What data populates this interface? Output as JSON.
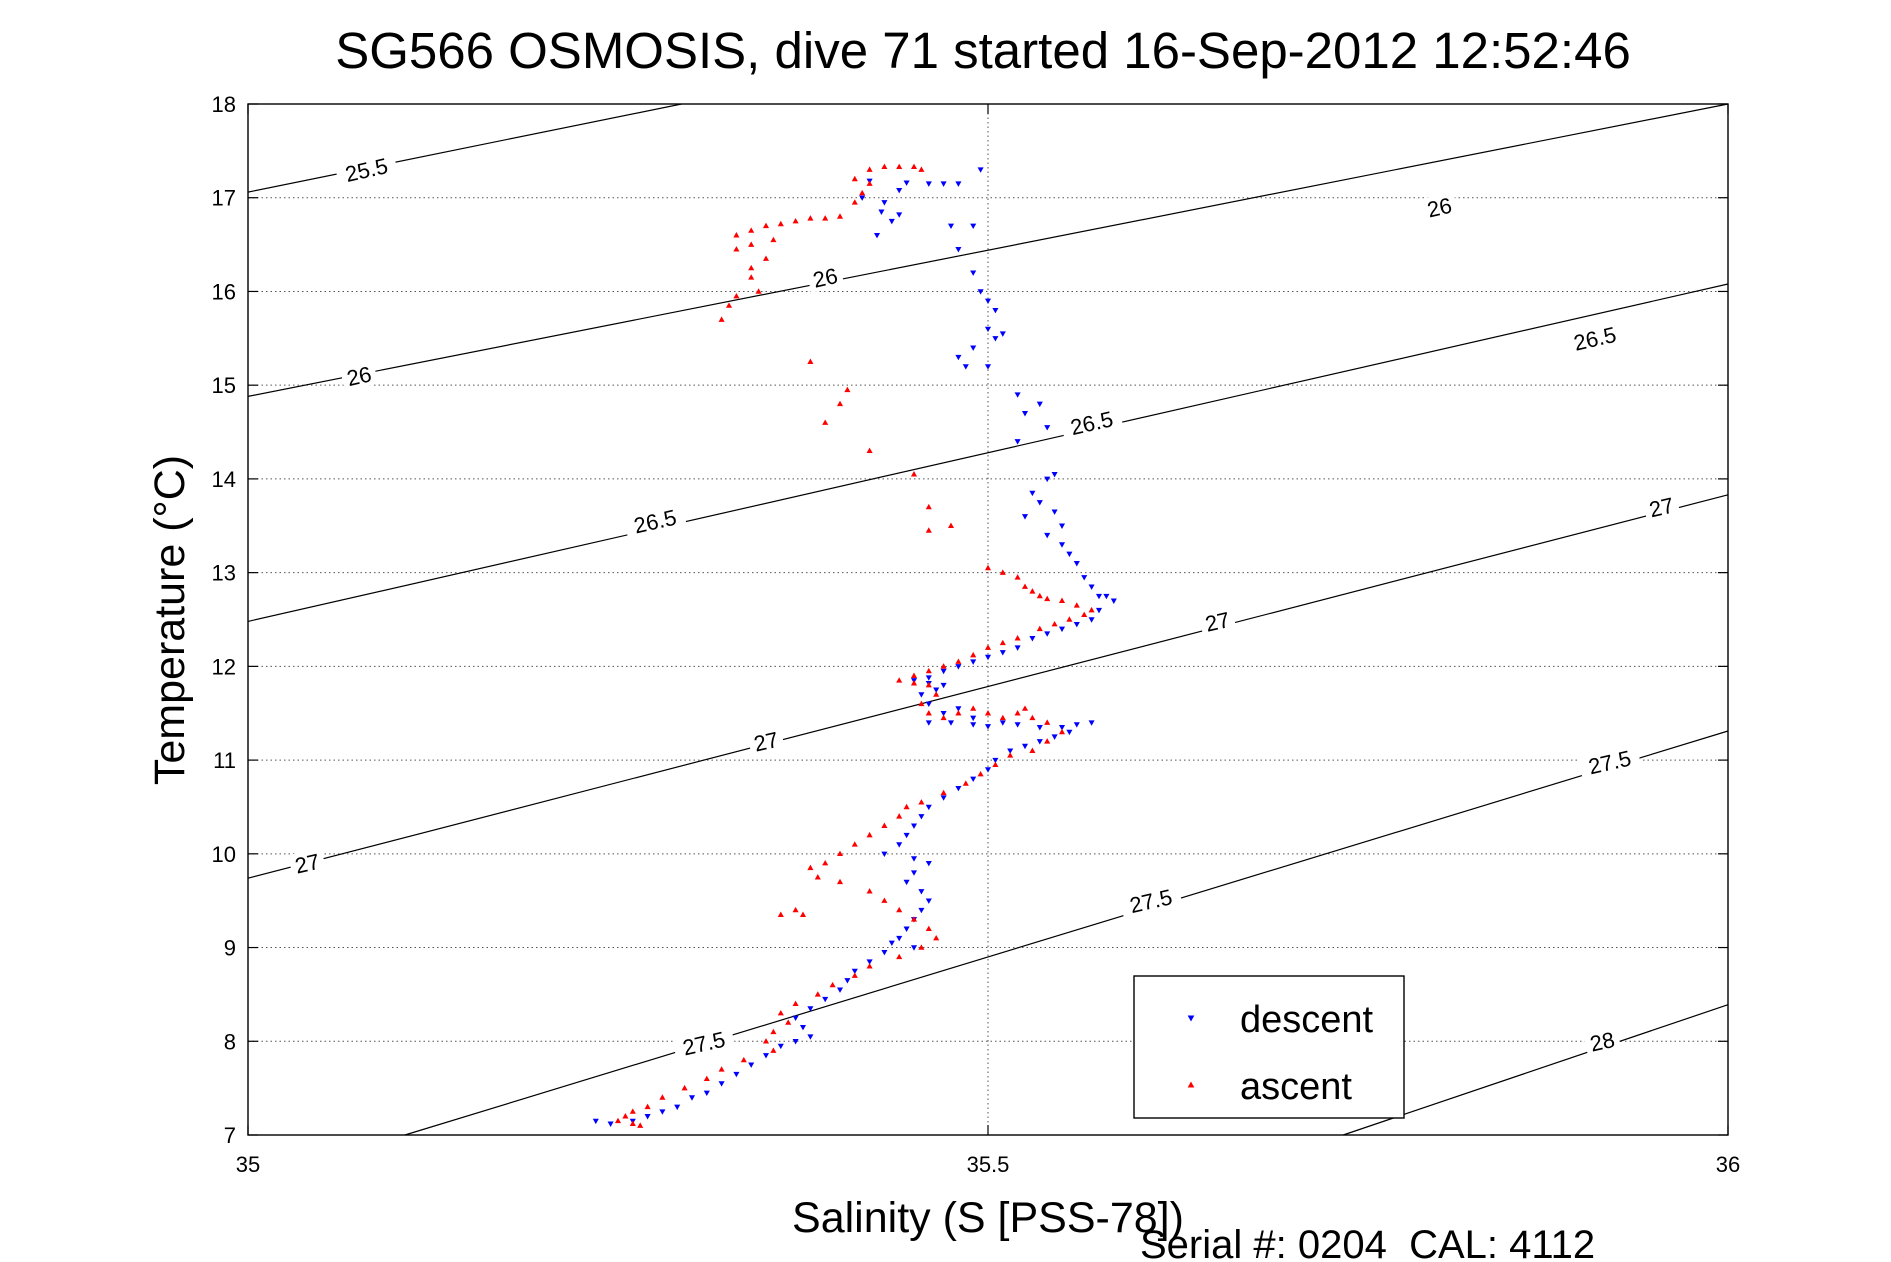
{
  "chart_data": {
    "type": "scatter",
    "title": "SG566 OSMOSIS, dive 71 started 16-Sep-2012 12:52:46",
    "xlabel": "Salinity (S [PSS-78])",
    "ylabel": "Temperature (°C)",
    "footer": "Serial #: 0204  CAL: 4112",
    "xlim": [
      35,
      36
    ],
    "ylim": [
      7,
      18
    ],
    "x_ticks": [
      35,
      35.5,
      36
    ],
    "x_tick_labels": [
      "35",
      "35.5",
      "36"
    ],
    "y_ticks": [
      7,
      8,
      9,
      10,
      11,
      12,
      13,
      14,
      15,
      16,
      17,
      18
    ],
    "y_tick_labels": [
      "7",
      "8",
      "9",
      "10",
      "11",
      "12",
      "13",
      "14",
      "15",
      "16",
      "17",
      "18"
    ],
    "grid": true,
    "legend_position": "bottom-right",
    "contours": [
      {
        "label": "25.5",
        "points": [
          [
            35,
            17.06
          ],
          [
            35.293,
            18.0
          ]
        ]
      },
      {
        "label": "26",
        "points": [
          [
            35,
            14.88
          ],
          [
            36,
            18.0
          ]
        ]
      },
      {
        "label": "26.5",
        "points": [
          [
            35,
            12.48
          ],
          [
            36,
            16.08
          ]
        ]
      },
      {
        "label": "27",
        "points": [
          [
            35,
            9.74
          ],
          [
            36,
            13.83
          ]
        ]
      },
      {
        "label": "27.5",
        "points": [
          [
            35.106,
            7.0
          ],
          [
            36,
            11.31
          ]
        ]
      },
      {
        "label": "28",
        "points": [
          [
            35.74,
            7.0
          ],
          [
            36,
            8.39
          ]
        ]
      }
    ],
    "contour_labels": [
      {
        "text": "25.5",
        "x": 35.08,
        "y": 17.3
      },
      {
        "text": "26",
        "x": 35.39,
        "y": 16.15
      },
      {
        "text": "26",
        "x": 35.075,
        "y": 15.1
      },
      {
        "text": "26",
        "x": 35.805,
        "y": 16.9
      },
      {
        "text": "26.5",
        "x": 35.57,
        "y": 14.6
      },
      {
        "text": "26.5",
        "x": 35.275,
        "y": 13.55
      },
      {
        "text": "26.5",
        "x": 35.91,
        "y": 15.5
      },
      {
        "text": "27",
        "x": 35.35,
        "y": 11.2
      },
      {
        "text": "27",
        "x": 35.04,
        "y": 9.9
      },
      {
        "text": "27",
        "x": 35.655,
        "y": 12.48
      },
      {
        "text": "27",
        "x": 35.955,
        "y": 13.7
      },
      {
        "text": "27.5",
        "x": 35.308,
        "y": 7.98
      },
      {
        "text": "27.5",
        "x": 35.61,
        "y": 9.5
      },
      {
        "text": "27.5",
        "x": 35.92,
        "y": 10.98
      },
      {
        "text": "28",
        "x": 35.915,
        "y": 8.0
      }
    ],
    "series": [
      {
        "name": "descent",
        "color": "#0000ff",
        "marker": "triangle-down",
        "points": [
          [
            35.42,
            17.18
          ],
          [
            35.44,
            17.08
          ],
          [
            35.445,
            17.16
          ],
          [
            35.46,
            17.15
          ],
          [
            35.47,
            17.15
          ],
          [
            35.48,
            17.15
          ],
          [
            35.495,
            17.3
          ],
          [
            35.415,
            17.0
          ],
          [
            35.43,
            16.95
          ],
          [
            35.428,
            16.85
          ],
          [
            35.435,
            16.75
          ],
          [
            35.44,
            16.82
          ],
          [
            35.425,
            16.6
          ],
          [
            35.475,
            16.7
          ],
          [
            35.49,
            16.7
          ],
          [
            35.48,
            16.45
          ],
          [
            35.49,
            16.2
          ],
          [
            35.495,
            16.0
          ],
          [
            35.5,
            15.9
          ],
          [
            35.505,
            15.8
          ],
          [
            35.5,
            15.6
          ],
          [
            35.505,
            15.5
          ],
          [
            35.49,
            15.4
          ],
          [
            35.48,
            15.3
          ],
          [
            35.485,
            15.2
          ],
          [
            35.51,
            15.55
          ],
          [
            35.5,
            15.2
          ],
          [
            35.52,
            14.9
          ],
          [
            35.525,
            14.7
          ],
          [
            35.535,
            14.8
          ],
          [
            35.54,
            14.55
          ],
          [
            35.52,
            14.4
          ],
          [
            35.54,
            14.0
          ],
          [
            35.545,
            14.05
          ],
          [
            35.53,
            13.85
          ],
          [
            35.535,
            13.75
          ],
          [
            35.545,
            13.65
          ],
          [
            35.525,
            13.6
          ],
          [
            35.55,
            13.5
          ],
          [
            35.54,
            13.4
          ],
          [
            35.55,
            13.3
          ],
          [
            35.555,
            13.2
          ],
          [
            35.56,
            13.1
          ],
          [
            35.565,
            12.95
          ],
          [
            35.57,
            12.85
          ],
          [
            35.575,
            12.75
          ],
          [
            35.58,
            12.75
          ],
          [
            35.585,
            12.7
          ],
          [
            35.575,
            12.6
          ],
          [
            35.57,
            12.5
          ],
          [
            35.56,
            12.45
          ],
          [
            35.55,
            12.4
          ],
          [
            35.54,
            12.35
          ],
          [
            35.53,
            12.3
          ],
          [
            35.52,
            12.2
          ],
          [
            35.51,
            12.15
          ],
          [
            35.5,
            12.1
          ],
          [
            35.49,
            12.05
          ],
          [
            35.48,
            12.0
          ],
          [
            35.47,
            11.95
          ],
          [
            35.46,
            11.88
          ],
          [
            35.45,
            11.85
          ],
          [
            35.46,
            11.82
          ],
          [
            35.47,
            11.8
          ],
          [
            35.465,
            11.75
          ],
          [
            35.455,
            11.7
          ],
          [
            35.46,
            11.6
          ],
          [
            35.47,
            11.5
          ],
          [
            35.48,
            11.55
          ],
          [
            35.49,
            11.45
          ],
          [
            35.46,
            11.4
          ],
          [
            35.475,
            11.4
          ],
          [
            35.49,
            11.38
          ],
          [
            35.5,
            11.36
          ],
          [
            35.51,
            11.4
          ],
          [
            35.52,
            11.38
          ],
          [
            35.535,
            11.35
          ],
          [
            35.55,
            11.35
          ],
          [
            35.56,
            11.38
          ],
          [
            35.57,
            11.4
          ],
          [
            35.555,
            11.3
          ],
          [
            35.545,
            11.25
          ],
          [
            35.535,
            11.2
          ],
          [
            35.525,
            11.15
          ],
          [
            35.515,
            11.1
          ],
          [
            35.505,
            11.0
          ],
          [
            35.5,
            10.9
          ],
          [
            35.49,
            10.8
          ],
          [
            35.48,
            10.7
          ],
          [
            35.47,
            10.6
          ],
          [
            35.46,
            10.5
          ],
          [
            35.455,
            10.4
          ],
          [
            35.45,
            10.3
          ],
          [
            35.445,
            10.2
          ],
          [
            35.44,
            10.1
          ],
          [
            35.43,
            10.0
          ],
          [
            35.45,
            9.95
          ],
          [
            35.46,
            9.9
          ],
          [
            35.45,
            9.8
          ],
          [
            35.445,
            9.7
          ],
          [
            35.455,
            9.6
          ],
          [
            35.46,
            9.5
          ],
          [
            35.455,
            9.4
          ],
          [
            35.45,
            9.3
          ],
          [
            35.445,
            9.2
          ],
          [
            35.44,
            9.1
          ],
          [
            35.435,
            9.05
          ],
          [
            35.45,
            9.0
          ],
          [
            35.43,
            8.95
          ],
          [
            35.42,
            8.85
          ],
          [
            35.41,
            8.75
          ],
          [
            35.405,
            8.65
          ],
          [
            35.4,
            8.55
          ],
          [
            35.39,
            8.45
          ],
          [
            35.38,
            8.35
          ],
          [
            35.37,
            8.25
          ],
          [
            35.375,
            8.15
          ],
          [
            35.38,
            8.05
          ],
          [
            35.37,
            8.0
          ],
          [
            35.36,
            7.95
          ],
          [
            35.35,
            7.85
          ],
          [
            35.34,
            7.75
          ],
          [
            35.33,
            7.65
          ],
          [
            35.32,
            7.55
          ],
          [
            35.31,
            7.45
          ],
          [
            35.3,
            7.4
          ],
          [
            35.29,
            7.3
          ],
          [
            35.28,
            7.25
          ],
          [
            35.27,
            7.2
          ],
          [
            35.26,
            7.15
          ],
          [
            35.245,
            7.12
          ],
          [
            35.235,
            7.15
          ]
        ]
      },
      {
        "name": "ascent",
        "color": "#ff0000",
        "marker": "triangle-up",
        "points": [
          [
            35.42,
            17.3
          ],
          [
            35.43,
            17.33
          ],
          [
            35.44,
            17.33
          ],
          [
            35.45,
            17.33
          ],
          [
            35.455,
            17.3
          ],
          [
            35.41,
            17.2
          ],
          [
            35.42,
            17.15
          ],
          [
            35.415,
            17.05
          ],
          [
            35.41,
            16.95
          ],
          [
            35.4,
            16.8
          ],
          [
            35.39,
            16.78
          ],
          [
            35.38,
            16.78
          ],
          [
            35.37,
            16.75
          ],
          [
            35.36,
            16.72
          ],
          [
            35.35,
            16.7
          ],
          [
            35.34,
            16.65
          ],
          [
            35.33,
            16.6
          ],
          [
            35.355,
            16.55
          ],
          [
            35.34,
            16.5
          ],
          [
            35.33,
            16.45
          ],
          [
            35.35,
            16.35
          ],
          [
            35.34,
            16.25
          ],
          [
            35.34,
            16.15
          ],
          [
            35.345,
            16.0
          ],
          [
            35.33,
            15.95
          ],
          [
            35.325,
            15.85
          ],
          [
            35.32,
            15.7
          ],
          [
            35.38,
            15.25
          ],
          [
            35.405,
            14.95
          ],
          [
            35.4,
            14.8
          ],
          [
            35.39,
            14.6
          ],
          [
            35.42,
            14.3
          ],
          [
            35.45,
            14.05
          ],
          [
            35.46,
            13.7
          ],
          [
            35.46,
            13.45
          ],
          [
            35.475,
            13.5
          ],
          [
            35.5,
            13.05
          ],
          [
            35.51,
            13.0
          ],
          [
            35.52,
            12.95
          ],
          [
            35.525,
            12.85
          ],
          [
            35.53,
            12.8
          ],
          [
            35.535,
            12.75
          ],
          [
            35.54,
            12.72
          ],
          [
            35.55,
            12.7
          ],
          [
            35.56,
            12.65
          ],
          [
            35.57,
            12.6
          ],
          [
            35.565,
            12.55
          ],
          [
            35.555,
            12.5
          ],
          [
            35.545,
            12.45
          ],
          [
            35.535,
            12.4
          ],
          [
            35.52,
            12.3
          ],
          [
            35.51,
            12.25
          ],
          [
            35.5,
            12.2
          ],
          [
            35.49,
            12.12
          ],
          [
            35.48,
            12.05
          ],
          [
            35.47,
            12.0
          ],
          [
            35.46,
            11.95
          ],
          [
            35.45,
            11.9
          ],
          [
            35.44,
            11.85
          ],
          [
            35.45,
            11.82
          ],
          [
            35.46,
            11.8
          ],
          [
            35.465,
            11.7
          ],
          [
            35.455,
            11.6
          ],
          [
            35.46,
            11.5
          ],
          [
            35.47,
            11.45
          ],
          [
            35.48,
            11.5
          ],
          [
            35.49,
            11.55
          ],
          [
            35.5,
            11.5
          ],
          [
            35.51,
            11.45
          ],
          [
            35.52,
            11.5
          ],
          [
            35.525,
            11.55
          ],
          [
            35.53,
            11.45
          ],
          [
            35.54,
            11.4
          ],
          [
            35.55,
            11.3
          ],
          [
            35.54,
            11.2
          ],
          [
            35.53,
            11.1
          ],
          [
            35.515,
            11.05
          ],
          [
            35.505,
            10.95
          ],
          [
            35.495,
            10.85
          ],
          [
            35.485,
            10.75
          ],
          [
            35.47,
            10.65
          ],
          [
            35.455,
            10.55
          ],
          [
            35.445,
            10.5
          ],
          [
            35.44,
            10.4
          ],
          [
            35.43,
            10.3
          ],
          [
            35.42,
            10.2
          ],
          [
            35.41,
            10.1
          ],
          [
            35.4,
            10.0
          ],
          [
            35.39,
            9.9
          ],
          [
            35.38,
            9.85
          ],
          [
            35.385,
            9.75
          ],
          [
            35.4,
            9.7
          ],
          [
            35.42,
            9.6
          ],
          [
            35.43,
            9.5
          ],
          [
            35.44,
            9.4
          ],
          [
            35.45,
            9.3
          ],
          [
            35.46,
            9.2
          ],
          [
            35.465,
            9.1
          ],
          [
            35.455,
            9.0
          ],
          [
            35.44,
            8.9
          ],
          [
            35.42,
            8.8
          ],
          [
            35.41,
            8.7
          ],
          [
            35.395,
            8.6
          ],
          [
            35.385,
            8.5
          ],
          [
            35.37,
            8.4
          ],
          [
            35.36,
            8.3
          ],
          [
            35.365,
            8.2
          ],
          [
            35.355,
            8.1
          ],
          [
            35.35,
            8.0
          ],
          [
            35.355,
            7.9
          ],
          [
            35.335,
            7.8
          ],
          [
            35.32,
            7.7
          ],
          [
            35.31,
            7.6
          ],
          [
            35.295,
            7.5
          ],
          [
            35.28,
            7.4
          ],
          [
            35.27,
            7.3
          ],
          [
            35.26,
            7.25
          ],
          [
            35.255,
            7.2
          ],
          [
            35.25,
            7.15
          ],
          [
            35.26,
            7.12
          ],
          [
            35.265,
            7.1
          ],
          [
            35.37,
            9.4
          ],
          [
            35.375,
            9.35
          ],
          [
            35.36,
            9.35
          ]
        ]
      }
    ]
  }
}
